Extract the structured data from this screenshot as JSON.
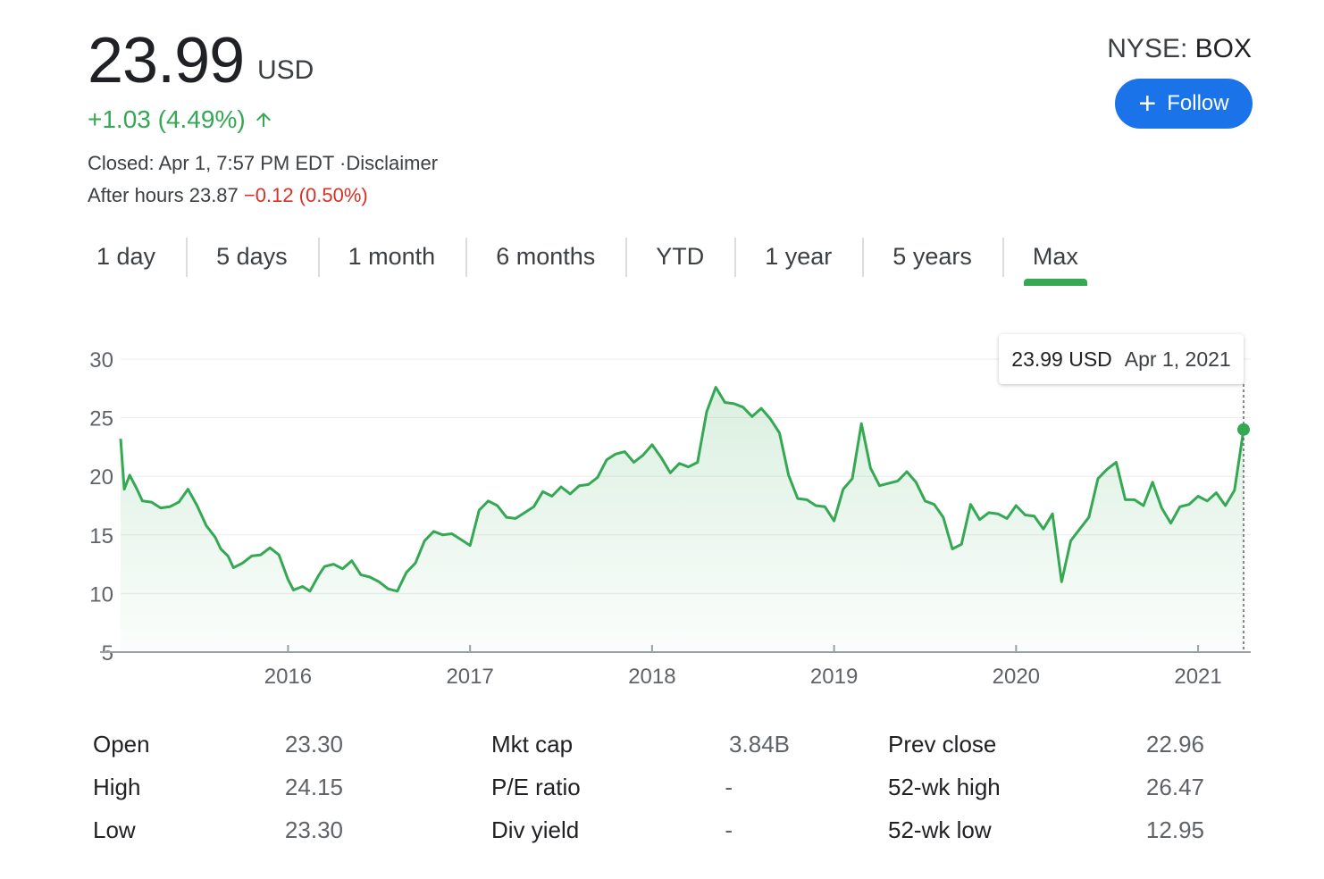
{
  "quote": {
    "price": "23.99",
    "currency": "USD",
    "change": "+1.03 (4.49%)",
    "status": "Closed: Apr 1, 7:57 PM EDT ·",
    "disclaimer": "Disclaimer",
    "after_hours_label": "After hours 23.87",
    "after_hours_change": "−0.12 (0.50%)",
    "exchange": "NYSE: ",
    "symbol": "BOX",
    "follow_label": "Follow"
  },
  "colors": {
    "positive": "#34a853",
    "negative": "#d93025",
    "accent": "#1a73e8"
  },
  "tabs": [
    {
      "label": "1 day"
    },
    {
      "label": "5 days"
    },
    {
      "label": "1 month"
    },
    {
      "label": "6 months"
    },
    {
      "label": "YTD"
    },
    {
      "label": "1 year"
    },
    {
      "label": "5 years"
    },
    {
      "label": "Max",
      "active": true
    }
  ],
  "tooltip": {
    "price": "23.99 USD",
    "date": "Apr 1, 2021"
  },
  "chart_data": {
    "type": "area",
    "ylim": [
      5,
      30
    ],
    "yticks": [
      "30",
      "25",
      "20",
      "15",
      "10",
      "5"
    ],
    "xticks": [
      "2016",
      "2017",
      "2018",
      "2019",
      "2020",
      "2021"
    ],
    "x_range": [
      2015.08,
      2021.25
    ],
    "grid": true,
    "series": [
      {
        "x": [
          2015.08,
          2015.1,
          2015.13,
          2015.17,
          2015.2,
          2015.25,
          2015.3,
          2015.35,
          2015.4,
          2015.45,
          2015.5,
          2015.55,
          2015.6,
          2015.63,
          2015.67,
          2015.7,
          2015.75,
          2015.8,
          2015.85,
          2015.9,
          2015.95,
          2016.0,
          2016.03,
          2016.08,
          2016.12,
          2016.17,
          2016.2,
          2016.25,
          2016.3,
          2016.35,
          2016.4,
          2016.45,
          2016.5,
          2016.55,
          2016.6,
          2016.65,
          2016.7,
          2016.75,
          2016.8,
          2016.85,
          2016.9,
          2016.95,
          2017.0,
          2017.05,
          2017.1,
          2017.15,
          2017.2,
          2017.25,
          2017.3,
          2017.35,
          2017.4,
          2017.45,
          2017.5,
          2017.55,
          2017.6,
          2017.65,
          2017.7,
          2017.75,
          2017.8,
          2017.85,
          2017.9,
          2017.95,
          2018.0,
          2018.05,
          2018.1,
          2018.15,
          2018.2,
          2018.25,
          2018.3,
          2018.35,
          2018.4,
          2018.45,
          2018.5,
          2018.55,
          2018.6,
          2018.65,
          2018.7,
          2018.75,
          2018.8,
          2018.85,
          2018.9,
          2018.95,
          2019.0,
          2019.05,
          2019.1,
          2019.15,
          2019.2,
          2019.25,
          2019.3,
          2019.35,
          2019.4,
          2019.45,
          2019.5,
          2019.55,
          2019.6,
          2019.65,
          2019.7,
          2019.75,
          2019.8,
          2019.85,
          2019.9,
          2019.95,
          2020.0,
          2020.05,
          2020.1,
          2020.15,
          2020.2,
          2020.25,
          2020.3,
          2020.35,
          2020.4,
          2020.45,
          2020.5,
          2020.55,
          2020.6,
          2020.65,
          2020.7,
          2020.75,
          2020.8,
          2020.85,
          2020.9,
          2020.95,
          2021.0,
          2021.05,
          2021.1,
          2021.15,
          2021.2,
          2021.25
        ],
        "y": [
          23.2,
          18.9,
          20.1,
          18.9,
          17.9,
          17.8,
          17.3,
          17.4,
          17.8,
          18.9,
          17.5,
          15.8,
          14.8,
          13.8,
          13.2,
          12.2,
          12.6,
          13.2,
          13.3,
          13.9,
          13.3,
          11.2,
          10.3,
          10.6,
          10.2,
          11.6,
          12.3,
          12.5,
          12.1,
          12.8,
          11.6,
          11.4,
          11.0,
          10.4,
          10.2,
          11.8,
          12.6,
          14.5,
          15.3,
          15.0,
          15.1,
          14.6,
          14.1,
          17.1,
          17.9,
          17.5,
          16.5,
          16.4,
          16.9,
          17.4,
          18.7,
          18.3,
          19.1,
          18.5,
          19.2,
          19.3,
          19.9,
          21.4,
          21.9,
          22.1,
          21.2,
          21.8,
          22.7,
          21.6,
          20.3,
          21.1,
          20.8,
          21.2,
          25.5,
          27.6,
          26.3,
          26.2,
          25.9,
          25.1,
          25.8,
          24.9,
          23.7,
          20.1,
          18.1,
          18.0,
          17.5,
          17.4,
          16.2,
          18.9,
          19.8,
          24.5,
          20.7,
          19.2,
          19.4,
          19.6,
          20.4,
          19.5,
          17.9,
          17.6,
          16.5,
          13.8,
          14.2,
          17.6,
          16.3,
          16.9,
          16.8,
          16.4,
          17.5,
          16.7,
          16.6,
          15.5,
          16.8,
          11.0,
          14.5,
          15.5,
          16.5,
          19.8,
          20.6,
          21.2,
          18.0,
          18.0,
          17.5,
          19.5,
          17.3,
          16.0,
          17.4,
          17.6,
          18.3,
          17.9,
          18.6,
          17.5,
          18.8,
          23.99
        ]
      }
    ]
  },
  "stats": {
    "col1": [
      {
        "label": "Open",
        "value": "23.30"
      },
      {
        "label": "High",
        "value": "24.15"
      },
      {
        "label": "Low",
        "value": "23.30"
      }
    ],
    "col2": [
      {
        "label": "Mkt cap",
        "value": "3.84B"
      },
      {
        "label": "P/E ratio",
        "value": "-"
      },
      {
        "label": "Div yield",
        "value": "-"
      }
    ],
    "col3": [
      {
        "label": "Prev close",
        "value": "22.96"
      },
      {
        "label": "52-wk high",
        "value": "26.47"
      },
      {
        "label": "52-wk low",
        "value": "12.95"
      }
    ]
  }
}
